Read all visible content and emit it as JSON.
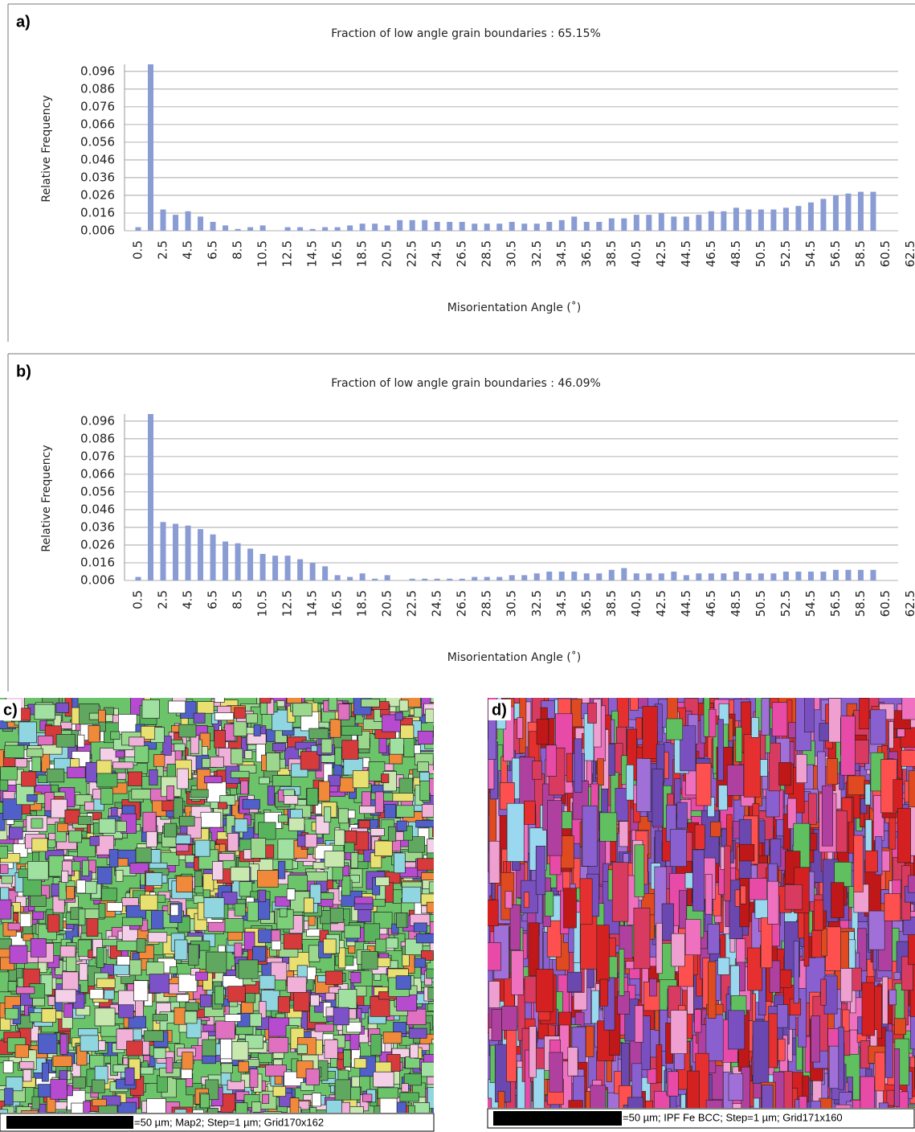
{
  "chart_data": [
    {
      "type": "bar",
      "panel_label": "a)",
      "title": "Fraction of low angle grain boundaries : 65.15%",
      "x_label": "Misorientation Angle (˚)",
      "y_label": "Relative Frequency",
      "color": "#8a9cd4",
      "grid": true,
      "categories": [
        "0.5",
        null,
        "2.5",
        null,
        "4.5",
        null,
        "6.5",
        null,
        "8.5",
        null,
        "10.5",
        null,
        "12.5",
        null,
        "14.5",
        null,
        "16.5",
        null,
        "18.5",
        null,
        "20.5",
        null,
        "22.5",
        null,
        "24.5",
        null,
        "26.5",
        null,
        "28.5",
        null,
        "30.5",
        null,
        "32.5",
        null,
        "34.5",
        null,
        "36.5",
        null,
        "38.5",
        null,
        "40.5",
        null,
        "42.5",
        null,
        "44.5",
        null,
        "46.5",
        null,
        "48.5",
        null,
        "50.5",
        null,
        "52.5",
        null,
        "54.5",
        null,
        "56.5",
        null,
        "58.5",
        null,
        "60.5",
        null,
        "62.5"
      ],
      "values": [
        0.008,
        0.1,
        0.018,
        0.015,
        0.017,
        0.014,
        0.011,
        0.009,
        0.007,
        0.008,
        0.009,
        0.006,
        0.008,
        0.008,
        0.007,
        0.008,
        0.008,
        0.009,
        0.01,
        0.01,
        0.009,
        0.012,
        0.012,
        0.012,
        0.011,
        0.011,
        0.011,
        0.01,
        0.01,
        0.01,
        0.011,
        0.01,
        0.01,
        0.011,
        0.012,
        0.014,
        0.011,
        0.011,
        0.013,
        0.013,
        0.015,
        0.015,
        0.016,
        0.014,
        0.014,
        0.015,
        0.017,
        0.017,
        0.019,
        0.018,
        0.018,
        0.018,
        0.019,
        0.02,
        0.022,
        0.024,
        0.026,
        0.027,
        0.028,
        0.028,
        null,
        null,
        null
      ],
      "ylim": [
        0.006,
        0.1
      ],
      "yticks": [
        0.006,
        0.016,
        0.026,
        0.036,
        0.046,
        0.056,
        0.066,
        0.076,
        0.086,
        0.096
      ]
    },
    {
      "type": "bar",
      "panel_label": "b)",
      "title": "Fraction of low angle grain boundaries : 46.09%",
      "x_label": "Misorientation Angle (˚)",
      "y_label": "Relative Frequency",
      "color": "#8a9cd4",
      "grid": true,
      "categories": [
        "0.5",
        null,
        "2.5",
        null,
        "4.5",
        null,
        "6.5",
        null,
        "8.5",
        null,
        "10.5",
        null,
        "12.5",
        null,
        "14.5",
        null,
        "16.5",
        null,
        "18.5",
        null,
        "20.5",
        null,
        "22.5",
        null,
        "24.5",
        null,
        "26.5",
        null,
        "28.5",
        null,
        "30.5",
        null,
        "32.5",
        null,
        "34.5",
        null,
        "36.5",
        null,
        "38.5",
        null,
        "40.5",
        null,
        "42.5",
        null,
        "44.5",
        null,
        "46.5",
        null,
        "48.5",
        null,
        "50.5",
        null,
        "52.5",
        null,
        "54.5",
        null,
        "56.5",
        null,
        "58.5",
        null,
        "60.5",
        null,
        "62.5"
      ],
      "values": [
        0.008,
        0.1,
        0.039,
        0.038,
        0.037,
        0.035,
        0.032,
        0.028,
        0.027,
        0.024,
        0.021,
        0.02,
        0.02,
        0.018,
        0.016,
        0.014,
        0.009,
        0.008,
        0.01,
        0.007,
        0.009,
        0.006,
        0.007,
        0.007,
        0.007,
        0.007,
        0.007,
        0.008,
        0.008,
        0.008,
        0.009,
        0.009,
        0.01,
        0.011,
        0.011,
        0.011,
        0.01,
        0.01,
        0.012,
        0.013,
        0.01,
        0.01,
        0.01,
        0.011,
        0.009,
        0.01,
        0.01,
        0.01,
        0.011,
        0.01,
        0.01,
        0.01,
        0.011,
        0.011,
        0.011,
        0.011,
        0.012,
        0.012,
        0.012,
        0.012,
        null,
        null,
        null
      ],
      "ylim": [
        0.006,
        0.1
      ],
      "yticks": [
        0.006,
        0.016,
        0.026,
        0.036,
        0.046,
        0.056,
        0.066,
        0.076,
        0.086,
        0.096
      ]
    }
  ],
  "maps": [
    {
      "label": "c)",
      "caption": "=50 µm; Map2; Step=1 µm; Grid170x162"
    },
    {
      "label": "d)",
      "caption": "=50 µm; IPF Fe BCC; Step=1 µm; Grid171x160"
    }
  ]
}
